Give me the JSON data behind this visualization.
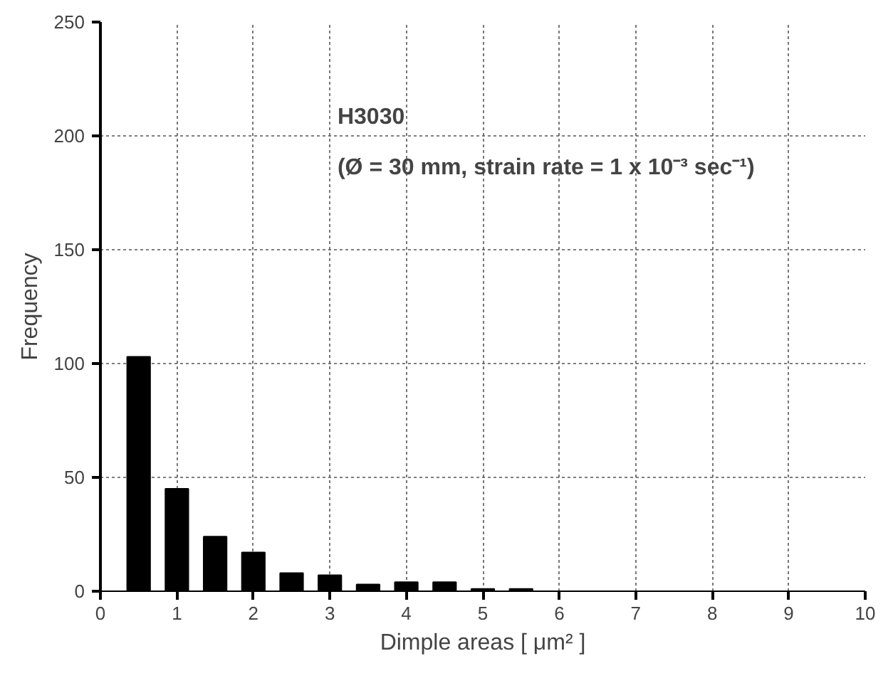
{
  "chart_data": {
    "type": "bar",
    "xlabel": "Dimple areas [ μm² ]",
    "ylabel": "Frequency",
    "x": [
      0.5,
      1,
      1.5,
      2,
      2.5,
      3,
      3.5,
      4,
      4.5,
      5,
      5.5
    ],
    "values": [
      103,
      45,
      24,
      17,
      8,
      7,
      3,
      4,
      4,
      1,
      1
    ],
    "color": "#000000",
    "xlim": [
      0,
      10
    ],
    "xticks": [
      0,
      1,
      2,
      3,
      4,
      5,
      6,
      7,
      8,
      9,
      10
    ],
    "ylim": [
      0,
      250
    ],
    "yticks": [
      0,
      50,
      100,
      150,
      200,
      250
    ],
    "grid": true,
    "annotations": [
      "H3030",
      "(Ø = 30 mm, strain rate = 1 x 10⁻³ sec⁻¹)"
    ]
  }
}
